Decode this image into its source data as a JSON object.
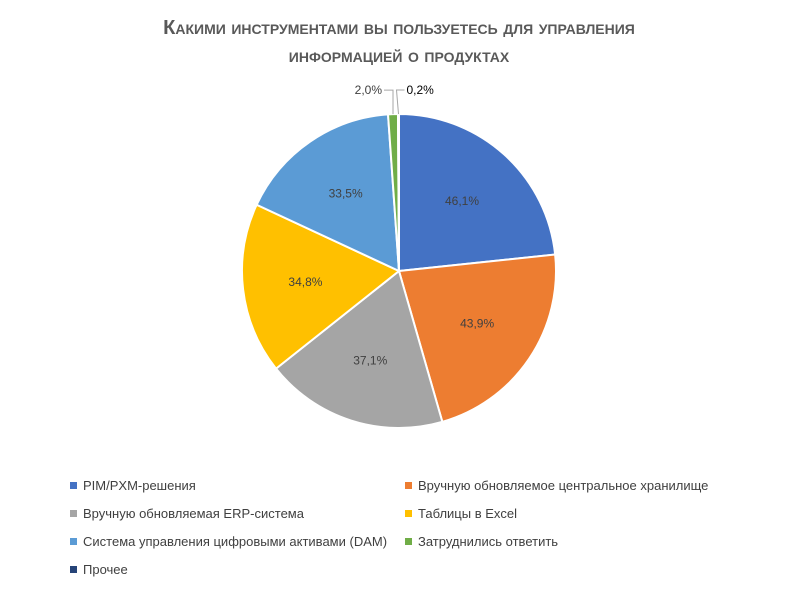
{
  "title_lines": [
    "Какими инструментами вы пользуетесь для управления",
    "информацией о продуктах"
  ],
  "chart_data": {
    "type": "pie",
    "title": "Какими инструментами вы пользуетесь для управления информацией о продуктах",
    "legend_position": "bottom",
    "slices": [
      {
        "label": "PIM/PXM-решения",
        "value": 46.1,
        "value_label": "46,1%",
        "color": "#4472C4"
      },
      {
        "label": "Вручную обновляемое центральное хранилище",
        "value": 43.9,
        "value_label": "43,9%",
        "color": "#ED7D31"
      },
      {
        "label": "Вручную обновляемая ERP-система",
        "value": 37.1,
        "value_label": "37,1%",
        "color": "#A5A5A5"
      },
      {
        "label": "Таблицы в Excel",
        "value": 34.8,
        "value_label": "34,8%",
        "color": "#FFC000"
      },
      {
        "label": "Система управления цифровыми активами (DAM)",
        "value": 33.5,
        "value_label": "33,5%",
        "color": "#5B9BD5"
      },
      {
        "label": "Затруднились ответить",
        "value": 2.0,
        "value_label": "2,0%",
        "color": "#70AD47"
      },
      {
        "label": "Прочее",
        "value": 0.2,
        "value_label": "0,2%",
        "color": "#264478"
      }
    ]
  }
}
